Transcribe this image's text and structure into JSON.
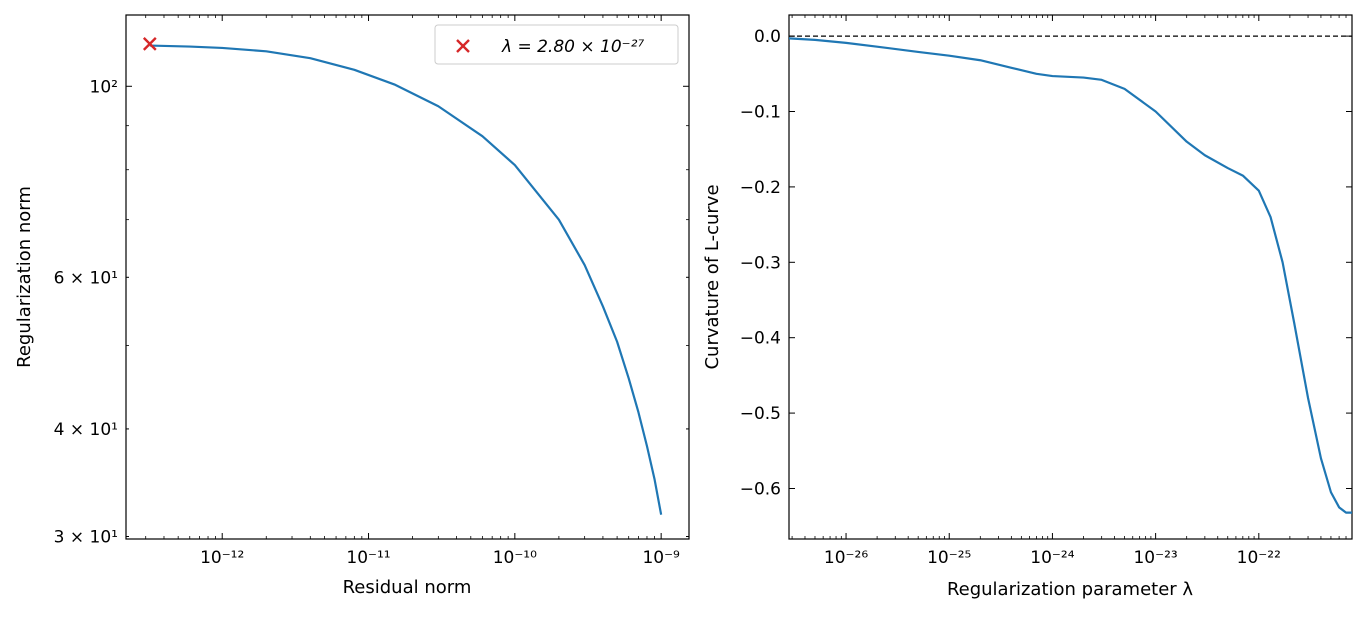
{
  "chart_data": [
    {
      "type": "line",
      "xscale": "log",
      "yscale": "log",
      "xlabel": "Residual norm",
      "ylabel": "Regularization norm",
      "xlim": [
        2.2e-13,
        1.55e-09
      ],
      "ylim": [
        29.8,
        121
      ],
      "x_ticks": [
        {
          "value": 1e-12,
          "label": "10⁻¹²"
        },
        {
          "value": 1e-11,
          "label": "10⁻¹¹"
        },
        {
          "value": 1e-10,
          "label": "10⁻¹⁰"
        },
        {
          "value": 1e-09,
          "label": "10⁻⁹"
        }
      ],
      "y_ticks": [
        {
          "value": 100,
          "label": "10²"
        },
        {
          "value": 60,
          "label": "6 × 10¹"
        },
        {
          "value": 40,
          "label": "4 × 10¹"
        },
        {
          "value": 30,
          "label": "3 × 10¹"
        }
      ],
      "legend_position": "top-right",
      "series": [
        {
          "color": "#1f77b4",
          "x": [
            3.2e-13,
            6e-13,
            1e-12,
            2e-12,
            4e-12,
            8e-12,
            1.5e-11,
            3e-11,
            6e-11,
            1e-10,
            2e-10,
            3e-10,
            4e-10,
            5e-10,
            6e-10,
            7e-10,
            8e-10,
            9e-10,
            1e-09
          ],
          "y": [
            111.5,
            111.2,
            110.8,
            109.8,
            107.8,
            104.5,
            100.5,
            94.8,
            87.5,
            81.0,
            70.0,
            62.0,
            55.5,
            50.5,
            45.8,
            41.8,
            38.2,
            35.0,
            31.8
          ]
        }
      ],
      "marker": {
        "x": 3.2e-13,
        "y": 112,
        "color": "#d62728",
        "symbol": "x",
        "legend_label": "λ = 2.80 × 10⁻²⁷"
      }
    },
    {
      "type": "line",
      "xscale": "log",
      "xlabel": "Regularization parameter λ",
      "ylabel": "Curvature of L-curve",
      "xlim": [
        2.8e-27,
        8e-22
      ],
      "ylim": [
        -0.667,
        0.028
      ],
      "x_ticks": [
        {
          "value": 1e-26,
          "label": "10⁻²⁶"
        },
        {
          "value": 1e-25,
          "label": "10⁻²⁵"
        },
        {
          "value": 1e-24,
          "label": "10⁻²⁴"
        },
        {
          "value": 1e-23,
          "label": "10⁻²³"
        },
        {
          "value": 1e-22,
          "label": "10⁻²²"
        }
      ],
      "y_ticks": [
        {
          "value": 0.0,
          "label": "0.0"
        },
        {
          "value": -0.1,
          "label": "−0.1"
        },
        {
          "value": -0.2,
          "label": "−0.2"
        },
        {
          "value": -0.3,
          "label": "−0.3"
        },
        {
          "value": -0.4,
          "label": "−0.4"
        },
        {
          "value": -0.5,
          "label": "−0.5"
        },
        {
          "value": -0.6,
          "label": "−0.6"
        }
      ],
      "reference_line": {
        "y": 0.0,
        "style": "dashed",
        "color": "#000000"
      },
      "series": [
        {
          "color": "#1f77b4",
          "x": [
            2.8e-27,
            5e-27,
            1e-26,
            2e-26,
            5e-26,
            1e-25,
            2e-25,
            4e-25,
            7e-25,
            1e-24,
            2e-24,
            3e-24,
            5e-24,
            1e-23,
            2e-23,
            3e-23,
            5e-23,
            7e-23,
            1e-22,
            1.3e-22,
            1.7e-22,
            2.2e-22,
            3e-22,
            4e-22,
            5e-22,
            6e-22,
            7e-22,
            8e-22
          ],
          "y": [
            -0.003,
            -0.005,
            -0.009,
            -0.014,
            -0.021,
            -0.026,
            -0.032,
            -0.042,
            -0.05,
            -0.053,
            -0.055,
            -0.058,
            -0.07,
            -0.1,
            -0.14,
            -0.158,
            -0.175,
            -0.185,
            -0.205,
            -0.24,
            -0.3,
            -0.38,
            -0.48,
            -0.56,
            -0.605,
            -0.625,
            -0.632,
            -0.632
          ]
        }
      ]
    }
  ]
}
